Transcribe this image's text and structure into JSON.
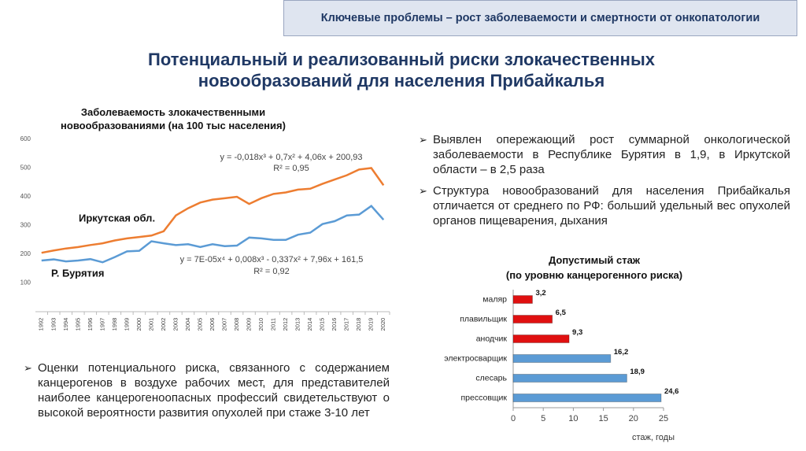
{
  "header": "Ключевые проблемы – рост заболеваемости и смертности от онкопатологии",
  "title": "Потенциальный и реализованный риски злокачественных новообразований для населения Прибайкалья",
  "bullets_right": [
    "Выявлен опережающий рост суммарной онкологической заболеваемости в Республике Бурятия в 1,9, в Иркутской области – в 2,5 раза",
    "Структура новообразований для населения Прибайкалья отличается от среднего по РФ: больший удельный вес опухолей органов пищеварения, дыхания"
  ],
  "bullets_left": [
    "Оценки потенциального риска, связанного с содержанием канцерогенов в воздухе рабочих мест, для представителей наиболее канцерогеноопасных профессий свидетельствуют о высокой вероятности развития опухолей при стаже 3-10 лет"
  ],
  "chart_data": [
    {
      "type": "line",
      "title": "Заболеваемость злокачественными новообразованиями (на 100 тыс населения)",
      "categories": [
        "1992",
        "1993",
        "1994",
        "1995",
        "1996",
        "1997",
        "1998",
        "1999",
        "2000",
        "2001",
        "2002",
        "2003",
        "2004",
        "2005",
        "2006",
        "2007",
        "2008",
        "2009",
        "2010",
        "2011",
        "2012",
        "2013",
        "2014",
        "2015",
        "2016",
        "2017",
        "2018",
        "2019",
        "2020"
      ],
      "series": [
        {
          "name": "Иркутская обл.",
          "color": "#ed7d31",
          "values": [
            205,
            213,
            220,
            225,
            232,
            238,
            248,
            255,
            260,
            265,
            280,
            335,
            360,
            380,
            390,
            395,
            400,
            375,
            395,
            410,
            415,
            425,
            428,
            445,
            460,
            475,
            495,
            500,
            440
          ]
        },
        {
          "name": "Р. Бурятия",
          "color": "#5b9bd5",
          "values": [
            178,
            182,
            175,
            178,
            183,
            172,
            190,
            210,
            212,
            245,
            238,
            232,
            235,
            225,
            235,
            228,
            230,
            258,
            255,
            250,
            250,
            268,
            275,
            305,
            315,
            335,
            338,
            368,
            320
          ]
        }
      ],
      "annotations": [
        "y = -0,018x³ + 0,7x² + 4,06x + 200,93",
        "R² = 0,95",
        "y = 7E-05x⁴ + 0,008x³ - 0,337x² + 7,96x + 161,5",
        "R² = 0,92"
      ],
      "ylim": [
        0,
        600
      ],
      "yticks": [
        100,
        200,
        300,
        400,
        500,
        600
      ],
      "grid": false
    },
    {
      "type": "hbar",
      "title": "Допустимый стаж",
      "subtitle": "(по уровню канцерогенного риска)",
      "categories": [
        "маляр",
        "плавильщик",
        "анодчик",
        "электросварщик",
        "слесарь",
        "прессовщик"
      ],
      "values": [
        3.2,
        6.5,
        9.3,
        16.2,
        18.9,
        24.6
      ],
      "value_labels": [
        "3,2",
        "6,5",
        "9,3",
        "16,2",
        "18,9",
        "24,6"
      ],
      "colors": [
        "#e01010",
        "#e01010",
        "#e01010",
        "#5b9bd5",
        "#5b9bd5",
        "#5b9bd5"
      ],
      "xlim": [
        0,
        25
      ],
      "xticks": [
        0,
        5,
        10,
        15,
        20,
        25
      ],
      "xlabel": "стаж, годы"
    }
  ]
}
